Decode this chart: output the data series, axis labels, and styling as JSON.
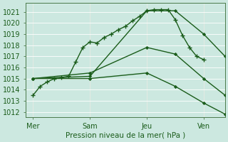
{
  "background_color": "#cce8e0",
  "plot_bg_color": "#cce8e0",
  "grid_color": "#b0d8d0",
  "line_color": "#1a5c1a",
  "xlabel": "Pression niveau de la mer( hPa )",
  "xlim": [
    0,
    84
  ],
  "ylim": [
    1011.5,
    1021.8
  ],
  "yticks": [
    1012,
    1013,
    1014,
    1015,
    1016,
    1017,
    1018,
    1019,
    1020,
    1021
  ],
  "xtick_labels": [
    "Mer",
    "Sam",
    "Jeu",
    "Ven"
  ],
  "xtick_positions": [
    3,
    27,
    51,
    75
  ],
  "vline_positions": [
    3,
    27,
    51,
    75
  ],
  "line1_x": [
    3,
    6,
    9,
    12,
    15,
    18,
    21,
    24,
    27,
    30,
    33,
    36,
    39,
    42,
    45,
    48,
    51,
    54,
    57,
    60,
    63,
    66,
    69,
    72,
    75
  ],
  "line1_y": [
    1013.5,
    1014.3,
    1014.7,
    1015.0,
    1015.1,
    1015.2,
    1016.5,
    1017.8,
    1018.3,
    1018.2,
    1018.7,
    1019.0,
    1019.4,
    1019.7,
    1020.2,
    1020.6,
    1021.1,
    1021.2,
    1021.2,
    1021.2,
    1020.3,
    1018.9,
    1017.8,
    1017.0,
    1016.7
  ],
  "line2_x": [
    3,
    27,
    51,
    63,
    75,
    84
  ],
  "line2_y": [
    1015.0,
    1015.2,
    1021.1,
    1021.1,
    1019.0,
    1017.0
  ],
  "line3_x": [
    3,
    27,
    51,
    63,
    75,
    84
  ],
  "line3_y": [
    1015.0,
    1015.5,
    1017.8,
    1017.2,
    1015.0,
    1013.5
  ],
  "line4_x": [
    3,
    27,
    51,
    63,
    75,
    84
  ],
  "line4_y": [
    1015.0,
    1015.0,
    1015.5,
    1014.3,
    1012.8,
    1011.8
  ]
}
